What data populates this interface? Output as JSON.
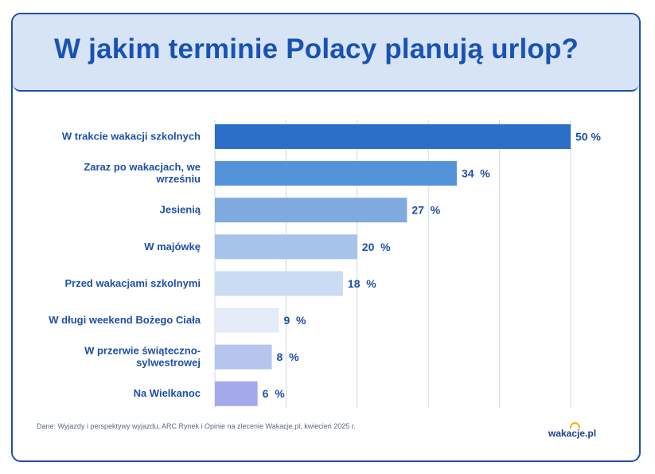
{
  "title": "W jakim terminie Polacy planują urlop?",
  "source": "Dane: Wyjazdy i perspektywy wyjazdu, ARC Rynek i Opinie na zlecenie Wakacje.pl, kwiecień 2025 r.",
  "logo_text": "wakacje.pl",
  "chart_data": {
    "type": "bar",
    "orientation": "horizontal",
    "categories": [
      [
        "W trakcie wakacji szkolnych"
      ],
      [
        "Zaraz po wakacjach, we",
        "wrześniu"
      ],
      [
        "Jesienią"
      ],
      [
        "W majówkę"
      ],
      [
        "Przed wakacjami szkolnymi"
      ],
      [
        "W długi weekend Bożego Ciała"
      ],
      [
        "W przerwie świąteczno-",
        "sylwestrowej"
      ],
      [
        "Na Wielkanoc"
      ]
    ],
    "values": [
      50,
      34,
      27,
      20,
      18,
      9,
      8,
      6
    ],
    "value_labels": [
      "50 %",
      "34  %",
      "27  %",
      "20  %",
      "18  %",
      "9  %",
      "8  %",
      "6  %"
    ],
    "colors": [
      "#2b6fc9",
      "#5593d8",
      "#7eaadf",
      "#a6c4ea",
      "#cadcf3",
      "#e3eaf8",
      "#b7c4ee",
      "#a3a9ea"
    ],
    "xlim": [
      0,
      50
    ],
    "grid": true,
    "label_color": "#1f4fa8"
  }
}
